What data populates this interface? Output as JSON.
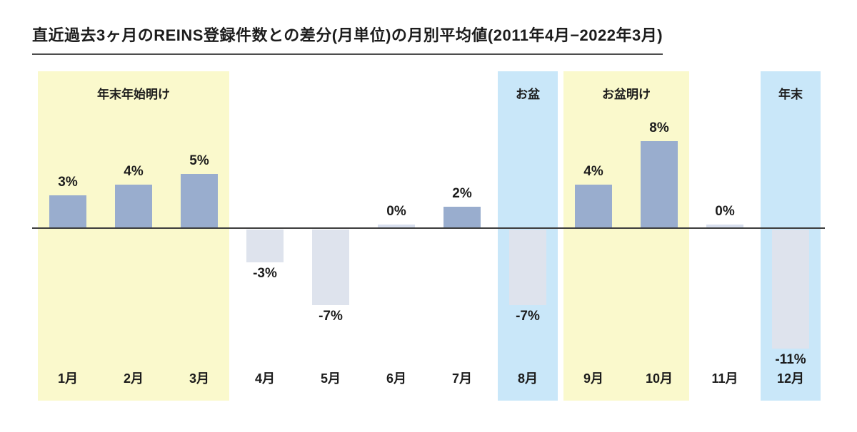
{
  "title": "直近過去3ヶ月のREINS登録件数との差分(月単位)の月別平均値(2011年4月−2022年3月)",
  "chart_data": {
    "type": "bar",
    "categories": [
      "1月",
      "2月",
      "3月",
      "4月",
      "5月",
      "6月",
      "7月",
      "8月",
      "9月",
      "10月",
      "11月",
      "12月"
    ],
    "values": [
      3,
      4,
      5,
      -3,
      -7,
      0,
      2,
      -7,
      4,
      8,
      0,
      -11
    ],
    "value_labels": [
      "3%",
      "4%",
      "5%",
      "-3%",
      "-7%",
      "0%",
      "2%",
      "-7%",
      "4%",
      "8%",
      "0%",
      "-11%"
    ],
    "unit": "%",
    "ylim": [
      -13,
      14
    ],
    "grid": false,
    "legend": "none",
    "bands": [
      {
        "label": "年末年始明け",
        "from_month": 1,
        "to_month": 3,
        "color_key": "yellow"
      },
      {
        "label": "お盆",
        "from_month": 8,
        "to_month": 8,
        "color_key": "blue"
      },
      {
        "label": "お盆明け",
        "from_month": 9,
        "to_month": 10,
        "color_key": "yellow"
      },
      {
        "label": "年末",
        "from_month": 12,
        "to_month": 12,
        "color_key": "blue"
      }
    ],
    "colors": {
      "positive_bar": "#99ADCE",
      "negative_bar": "#DEE3ED",
      "zero_bar": "#D8DFEE",
      "yellow_band": "#FAF9CC",
      "blue_band": "#C9E7F9",
      "axis_line": "#3C3C3C",
      "text": "#1C1C1C"
    }
  }
}
